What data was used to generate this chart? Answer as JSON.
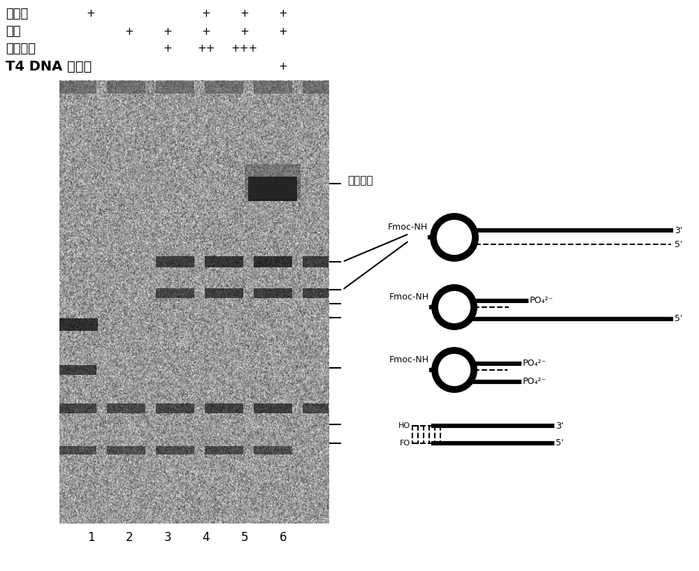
{
  "bg_color": "#ffffff",
  "row_labels": [
    "头片段",
    "标记",
    "氨基咊唢",
    "T4 DNA 连接酶"
  ],
  "row_label_bold": [
    false,
    false,
    false,
    true
  ],
  "col_markers": [
    [
      "+",
      "",
      "",
      "+",
      "+",
      "+",
      "+"
    ],
    [
      "",
      "+",
      "+",
      "+",
      "+",
      "+",
      ""
    ],
    [
      "",
      "",
      "+",
      "++",
      "+++",
      "",
      ""
    ],
    [
      "",
      "",
      "",
      "",
      "",
      "+",
      ""
    ]
  ],
  "lane_numbers": [
    "1",
    "2",
    "3",
    "4",
    "5",
    "6"
  ],
  "note_label": "氨基咊唢",
  "fmoc_label": "Fmoc-NH",
  "po4_label": "PO₄²⁻",
  "ho_label": "HO",
  "fo_label": "FO"
}
